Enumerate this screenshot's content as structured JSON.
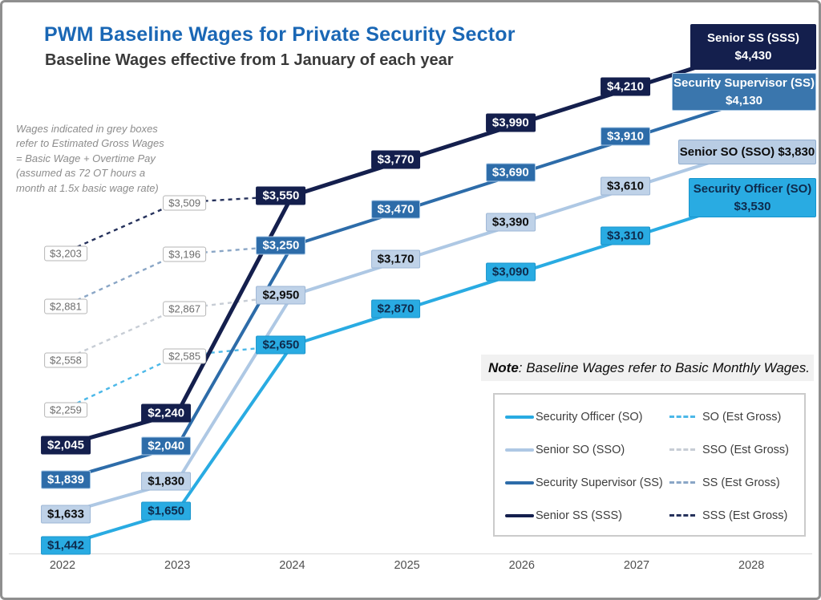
{
  "page": {
    "title": "PWM Baseline Wages for Private Security Sector",
    "subtitle": "Baseline Wages effective from 1 January of each year",
    "annotation": "Wages indicated in grey boxes\nrefer to Estimated Gross Wages\n= Basic Wage + Overtime Pay\n(assumed as 72 OT hours a\nmonth at 1.5x basic wage rate)",
    "note_bold": "Note",
    "note_rest": ": Baseline Wages refer to Basic Monthly Wages."
  },
  "chart_data": {
    "type": "line",
    "title": "PWM Baseline Wages for Private Security Sector",
    "subtitle": "Baseline Wages effective from 1 January of each year",
    "x": [
      2022,
      2023,
      2024,
      2025,
      2026,
      2027,
      2028
    ],
    "ylim": [
      1300,
      4600
    ],
    "grid": false,
    "legend_position": "bottom-right",
    "currency": "$",
    "series": [
      {
        "key": "SO",
        "name": "Security Officer (SO)",
        "color": "#29abe2",
        "label_bg": "#29abe2",
        "label_fg": "#0e2b4d",
        "label_border": "#1a95cc",
        "values": [
          1442,
          1650,
          2650,
          2870,
          3090,
          3310,
          3530
        ]
      },
      {
        "key": "SSO",
        "name": "Senior SO (SSO)",
        "color": "#aec8e4",
        "label_bg": "#bfd2e8",
        "label_fg": "#0d0d0d",
        "label_border": "#9db7d6",
        "values": [
          1633,
          1830,
          2950,
          3170,
          3390,
          3610,
          3830
        ]
      },
      {
        "key": "SS",
        "name": "Security Supervisor (SS)",
        "color": "#2d6ca9",
        "label_bg": "#2d6ca9",
        "label_fg": "#ffffff",
        "label_border": "#a9c9e6",
        "values": [
          1839,
          2040,
          3250,
          3470,
          3690,
          3910,
          4130
        ]
      },
      {
        "key": "SSS",
        "name": "Senior SS (SSS)",
        "color": "#141f4d",
        "label_bg": "#141f4d",
        "label_fg": "#ffffff",
        "label_border": "#141f4d",
        "values": [
          2045,
          2240,
          3550,
          3770,
          3990,
          4210,
          4430
        ]
      }
    ],
    "est_series": [
      {
        "key": "SO",
        "name": "SO (Est Gross)",
        "color": "#4cb8e8",
        "values": [
          2259,
          2585,
          2650
        ]
      },
      {
        "key": "SSO",
        "name": "SSO (Est Gross)",
        "color": "#c7cdd5",
        "values": [
          2558,
          2867,
          2950
        ]
      },
      {
        "key": "SS",
        "name": "SS (Est Gross)",
        "color": "#8aa6c6",
        "values": [
          2881,
          3196,
          3250
        ]
      },
      {
        "key": "SSS",
        "name": "SSS (Est Gross)",
        "color": "#26325c",
        "values": [
          3203,
          3509,
          3550
        ]
      }
    ],
    "end_labels": [
      {
        "key": "SSS",
        "title": "Senior SS (SSS)",
        "value": "$4,430",
        "bg": "#141f4d",
        "fg": "#ffffff",
        "border": "#141f4d",
        "two_line": true
      },
      {
        "key": "SS",
        "title": "Security Supervisor (SS)",
        "value": "$4,130",
        "bg": "#3a76ad",
        "fg": "#ffffff",
        "border": "#a6c6e4",
        "two_line": true
      },
      {
        "key": "SSO",
        "title": "Senior SO (SSO)",
        "value": "$3,830",
        "bg": "#b9cde4",
        "fg": "#0b0b0b",
        "border": "#93afd0",
        "two_line": false
      },
      {
        "key": "SO",
        "title": "Security Officer (SO)",
        "value": "$3,530",
        "bg": "#29abe2",
        "fg": "#0e2b4d",
        "border": "#1694cc",
        "two_line": true
      }
    ],
    "legend": [
      {
        "solid": "Security Officer (SO)",
        "dashed": "SO (Est Gross)"
      },
      {
        "solid": "Senior SO (SSO)",
        "dashed": "SSO (Est Gross)"
      },
      {
        "solid": "Security Supervisor (SS)",
        "dashed": "SS (Est Gross)"
      },
      {
        "solid": "Senior SS (SSS)",
        "dashed": "SSS (Est Gross)"
      }
    ]
  }
}
